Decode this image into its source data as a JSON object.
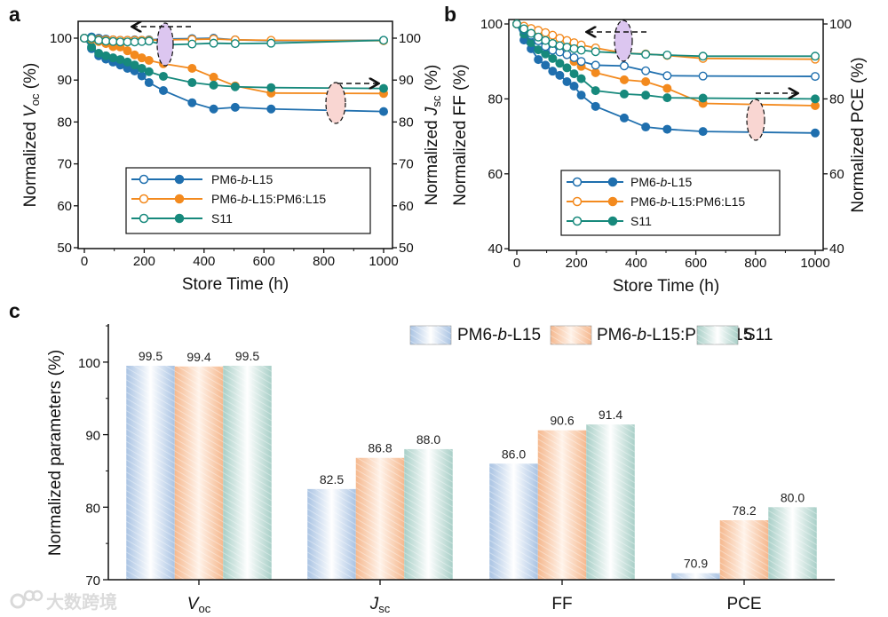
{
  "colors": {
    "blue": "#1f6fae",
    "orange": "#f38a1e",
    "teal": "#17897c",
    "blue_bar": "#a9c3e3",
    "orange_bar": "#f5b88e",
    "teal_bar": "#a8cfc7"
  },
  "watermark": "大数跨境",
  "chart_data": [
    {
      "panel": "a",
      "type": "line",
      "xlabel": "Store Time (h)",
      "ylabel_left": [
        "Normalized ",
        "V",
        "oc",
        " (%)"
      ],
      "ylabel_right": [
        "Normalized ",
        "J",
        "sc",
        " (%)"
      ],
      "xlim": [
        -20,
        1030
      ],
      "ylim": [
        50,
        104
      ],
      "xticks": [
        "0",
        "200",
        "400",
        "600",
        "800",
        "1000"
      ],
      "yticks": [
        "50",
        "60",
        "70",
        "80",
        "90",
        "100"
      ],
      "x": [
        0,
        24,
        48,
        72,
        96,
        120,
        144,
        168,
        192,
        216,
        264,
        360,
        432,
        504,
        624,
        1000
      ],
      "legend": [
        "PM6-",
        "b",
        "-L15",
        "PM6-",
        "b",
        "-L15:PM6:L15",
        "S11"
      ],
      "series": [
        {
          "name": "PM6-b-L15 Voc",
          "color": "blue",
          "marker": "open",
          "axis": "left",
          "values": [
            100,
            100.3,
            100,
            99.8,
            99.6,
            99.5,
            99.5,
            99.6,
            99.5,
            99.6,
            99.8,
            99.9,
            100,
            99.6,
            99.4,
            99.5
          ]
        },
        {
          "name": "PM6-b-L15:PM6:L15 Voc",
          "color": "orange",
          "marker": "open",
          "axis": "left",
          "values": [
            100,
            99.8,
            99.7,
            99.6,
            99.6,
            99.5,
            99.5,
            99.5,
            99.5,
            99.5,
            99.6,
            99.7,
            99.8,
            99.6,
            99.5,
            99.4
          ]
        },
        {
          "name": "S11 Voc",
          "color": "teal",
          "marker": "open",
          "axis": "left",
          "values": [
            100,
            100,
            99.5,
            99.3,
            99.2,
            99.1,
            99.1,
            99.1,
            99.2,
            99.3,
            98.4,
            98.6,
            98.8,
            98.7,
            98.8,
            99.5
          ]
        },
        {
          "name": "PM6-b-L15 Jsc",
          "color": "blue",
          "marker": "filled",
          "axis": "right",
          "values": [
            100,
            97.5,
            95.8,
            95,
            94.3,
            93.6,
            92.8,
            92.2,
            91,
            89.4,
            87.5,
            84.6,
            83.1,
            83.5,
            83.1,
            82.5
          ]
        },
        {
          "name": "PM6-b-L15:PM6:L15 Jsc",
          "color": "orange",
          "marker": "filled",
          "axis": "right",
          "values": [
            100,
            99.6,
            99.2,
            98.7,
            98,
            97.9,
            97,
            96,
            95.3,
            94.7,
            93.9,
            92.8,
            90.7,
            88.6,
            86.9,
            86.8
          ]
        },
        {
          "name": "S11 Jsc",
          "color": "teal",
          "marker": "filled",
          "axis": "right",
          "values": [
            100,
            97.9,
            96.4,
            95.8,
            95.3,
            94.9,
            94.3,
            93.6,
            92.8,
            92,
            90.9,
            89.4,
            88.8,
            88.4,
            88.2,
            88.0
          ]
        }
      ]
    },
    {
      "panel": "b",
      "type": "line",
      "xlabel": "Store Time (h)",
      "ylabel_left": [
        "Normalized FF (%)"
      ],
      "ylabel_right": [
        "Normalized PCE (%)"
      ],
      "xlim": [
        -20,
        1030
      ],
      "ylim": [
        40,
        101
      ],
      "xticks": [
        "0",
        "200",
        "400",
        "600",
        "800",
        "1000"
      ],
      "yticks": [
        "40",
        "60",
        "80",
        "100"
      ],
      "x": [
        0,
        24,
        48,
        72,
        96,
        120,
        144,
        168,
        192,
        216,
        264,
        360,
        432,
        504,
        624,
        1000
      ],
      "legend": [
        "PM6-",
        "b",
        "-L15",
        "PM6-",
        "b",
        "-L15:PM6:L15",
        "S11"
      ],
      "series": [
        {
          "name": "PM6-b-L15 FF",
          "color": "blue",
          "marker": "open",
          "axis": "left",
          "values": [
            100,
            98.5,
            97,
            95.5,
            94,
            93,
            92.5,
            91.8,
            91,
            90,
            89,
            88.8,
            87.5,
            86.2,
            86.1,
            86
          ]
        },
        {
          "name": "PM6-b-L15:PM6:L15 FF",
          "color": "orange",
          "marker": "open",
          "axis": "left",
          "values": [
            100,
            99.4,
            98.8,
            98.3,
            97.7,
            97,
            96.2,
            95.6,
            95,
            94.4,
            93.6,
            92.2,
            92,
            91.6,
            90.8,
            90.6
          ]
        },
        {
          "name": "S11 FF",
          "color": "teal",
          "marker": "open",
          "axis": "left",
          "values": [
            100,
            98.7,
            97.5,
            96.5,
            95.6,
            94.8,
            94.2,
            93.8,
            93.4,
            93,
            92.6,
            92.2,
            91.9,
            91.7,
            91.4,
            91.4
          ]
        },
        {
          "name": "PM6-b-L15 PCE",
          "color": "blue",
          "marker": "filled",
          "axis": "right",
          "values": [
            100,
            95.7,
            93.4,
            90.5,
            89,
            87.4,
            86.3,
            84.6,
            83.4,
            81,
            78,
            74.9,
            72.5,
            71.9,
            71.3,
            70.9
          ]
        },
        {
          "name": "PM6-b-L15:PM6:L15 PCE",
          "color": "orange",
          "marker": "filled",
          "axis": "right",
          "values": [
            100,
            98.8,
            97.5,
            96.2,
            95,
            94,
            93,
            91.8,
            90,
            88.7,
            87,
            85.1,
            84.6,
            82.8,
            78.8,
            78.2
          ]
        },
        {
          "name": "S11 PCE",
          "color": "teal",
          "marker": "filled",
          "axis": "right",
          "values": [
            100,
            97.3,
            95,
            93.1,
            92,
            90.8,
            89.5,
            88.3,
            86.7,
            85.4,
            82.2,
            81.3,
            81,
            80.3,
            80.2,
            80
          ]
        }
      ]
    },
    {
      "panel": "c",
      "type": "bar",
      "ylabel": "Normalized parameters (%)",
      "ylim": [
        70,
        105.5
      ],
      "yticks": [
        "70",
        "80",
        "90",
        "100"
      ],
      "categories": [
        [
          "V",
          "oc"
        ],
        [
          "J",
          "sc"
        ],
        [
          "FF",
          ""
        ],
        [
          "PCE",
          ""
        ]
      ],
      "legend": [
        "PM6-",
        "b",
        "-L15",
        "PM6-",
        "b",
        "-L15:PM6:L15",
        "S11"
      ],
      "series": [
        {
          "name": "PM6-b-L15",
          "color": "blue_bar",
          "values": [
            99.5,
            82.5,
            86.0,
            70.9
          ],
          "labels": [
            "99.5",
            "82.5",
            "86.0",
            "70.9"
          ]
        },
        {
          "name": "PM6-b-L15:PM6:L15",
          "color": "orange_bar",
          "values": [
            99.4,
            86.8,
            90.6,
            78.2
          ],
          "labels": [
            "99.4",
            "86.8",
            "90.6",
            "78.2"
          ]
        },
        {
          "name": "S11",
          "color": "teal_bar",
          "values": [
            99.5,
            88.0,
            91.4,
            80.0
          ],
          "labels": [
            "99.5",
            "88.0",
            "91.4",
            "80.0"
          ]
        }
      ]
    }
  ],
  "panel_labels": [
    "a",
    "b",
    "c"
  ]
}
